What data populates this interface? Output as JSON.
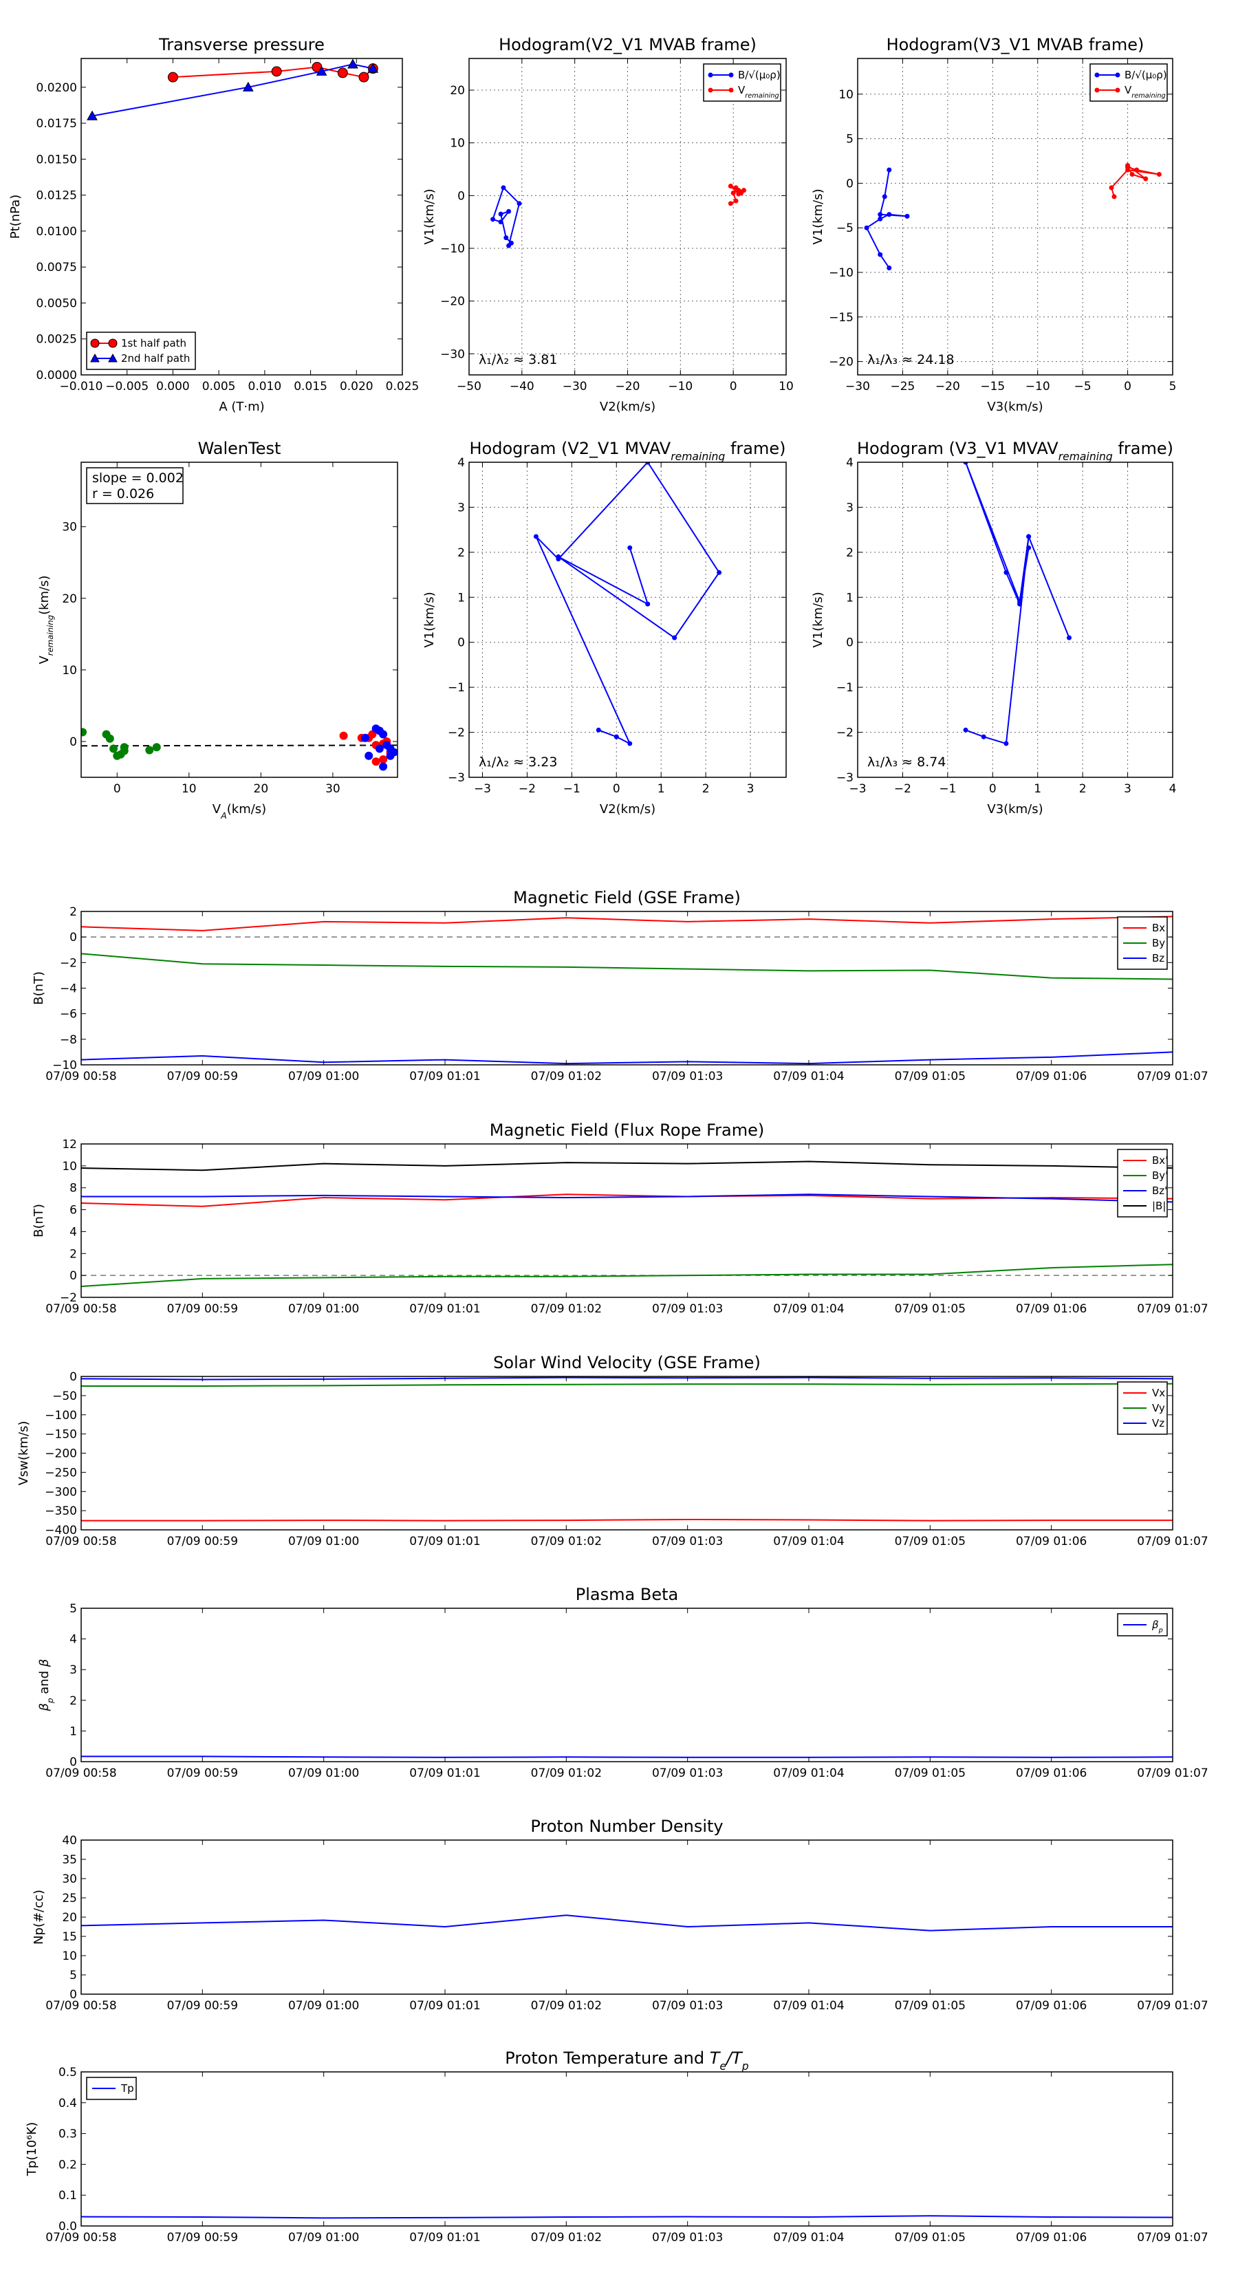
{
  "colors": {
    "red": "#ff0000",
    "green": "#008000",
    "blue": "#0000ff",
    "black": "#000000",
    "grid": "#666666",
    "dash": "#777777"
  },
  "time_ticks": [
    "07/09 00:58",
    "07/09 00:59",
    "07/09 01:00",
    "07/09 01:01",
    "07/09 01:02",
    "07/09 01:03",
    "07/09 01:04",
    "07/09 01:05",
    "07/09 01:06",
    "07/09 01:07"
  ],
  "chart_data": [
    {
      "id": "pt",
      "type": "scatter",
      "title": "Transverse pressure",
      "xlabel": "A (T·m)",
      "ylabel": "Pt(nPa)",
      "xlim": [
        -0.01,
        0.025
      ],
      "ylim": [
        0,
        0.022
      ],
      "xticks": [
        -0.01,
        -0.005,
        0,
        0.005,
        0.01,
        0.015,
        0.02,
        0.025
      ],
      "xtick_labels": [
        "−0.010",
        "−0.005",
        "0.000",
        "0.005",
        "0.010",
        "0.015",
        "0.020",
        "0.025"
      ],
      "yticks": [
        0,
        0.0025,
        0.005,
        0.0075,
        0.01,
        0.0125,
        0.015,
        0.0175,
        0.02
      ],
      "ytick_labels": [
        "0.0000",
        "0.0025",
        "0.0050",
        "0.0075",
        "0.0100",
        "0.0125",
        "0.0150",
        "0.0175",
        "0.0200"
      ],
      "legend_position": "lower-left",
      "series": [
        {
          "name": "1st half path",
          "color": "red",
          "marker": "circle",
          "x": [
            0.0,
            0.0113,
            0.0157,
            0.0185,
            0.0208,
            0.0218
          ],
          "y": [
            0.0207,
            0.0211,
            0.0214,
            0.021,
            0.0207,
            0.0213
          ]
        },
        {
          "name": "2nd half path",
          "color": "blue",
          "marker": "triangle",
          "x": [
            -0.0088,
            0.0082,
            0.0162,
            0.0196,
            0.0218
          ],
          "y": [
            0.018,
            0.02,
            0.0211,
            0.0216,
            0.0213
          ]
        }
      ]
    },
    {
      "id": "hb12",
      "type": "line",
      "title": "Hodogram(V2_V1 MVAB frame)",
      "xlabel": "V2(km/s)",
      "ylabel": "V1(km/s)",
      "xlim": [
        -50,
        10
      ],
      "ylim": [
        -34,
        26
      ],
      "xticks": [
        -50,
        -40,
        -30,
        -20,
        -10,
        0,
        10
      ],
      "xtick_labels": [
        "−50",
        "−40",
        "−30",
        "−20",
        "−10",
        "0",
        "10"
      ],
      "yticks": [
        -30,
        -20,
        -10,
        0,
        10,
        20
      ],
      "ytick_labels": [
        "−30",
        "−20",
        "−10",
        "0",
        "10",
        "20"
      ],
      "grid": true,
      "legend_position": "top-right",
      "annotation": "λ₁/λ₂ ≈ 3.81",
      "series": [
        {
          "name": "B/√(μ₀ρ)",
          "color": "blue",
          "x": [
            -42.5,
            -40.5,
            -43.5,
            -45.5,
            -44,
            -42.5,
            -44,
            -43,
            -42
          ],
          "y": [
            -9.5,
            -1.5,
            1.5,
            -4.5,
            -5,
            -3,
            -3.5,
            -8,
            -9
          ]
        },
        {
          "name": "V_remaining",
          "color": "red",
          "x": [
            -0.5,
            0.5,
            0,
            1,
            2,
            1.5,
            0.5,
            -0.5,
            1
          ],
          "y": [
            -1.5,
            -1,
            0.5,
            1,
            1,
            0.5,
            1.5,
            1.8,
            0.3
          ]
        }
      ]
    },
    {
      "id": "hb13",
      "type": "line",
      "title": "Hodogram(V3_V1 MVAB frame)",
      "xlabel": "V3(km/s)",
      "ylabel": "V1(km/s)",
      "xlim": [
        -30,
        5
      ],
      "ylim": [
        -21.5,
        14
      ],
      "xticks": [
        -30,
        -25,
        -20,
        -15,
        -10,
        -5,
        0,
        5
      ],
      "xtick_labels": [
        "−30",
        "−25",
        "−20",
        "−15",
        "−10",
        "−5",
        "0",
        "5"
      ],
      "yticks": [
        -20,
        -15,
        -10,
        -5,
        0,
        5,
        10
      ],
      "ytick_labels": [
        "−20",
        "−15",
        "−10",
        "−5",
        "0",
        "5",
        "10"
      ],
      "grid": true,
      "legend_position": "top-right",
      "annotation": "λ₁/λ₃ ≈ 24.18",
      "series": [
        {
          "name": "B/√(μ₀ρ)",
          "color": "blue",
          "x": [
            -26.5,
            -27.5,
            -29,
            -27.5,
            -26.5,
            -24.5,
            -27.5,
            -27,
            -26.5
          ],
          "y": [
            -9.5,
            -8,
            -5,
            -4,
            -3.5,
            -3.7,
            -3.5,
            -1.5,
            1.5
          ]
        },
        {
          "name": "V_remaining",
          "color": "red",
          "x": [
            -1.5,
            -1.8,
            0,
            3.5,
            1,
            0,
            0.5,
            2,
            0
          ],
          "y": [
            -1.5,
            -0.5,
            1.5,
            1,
            1.5,
            1.8,
            1,
            0.5,
            2
          ]
        }
      ]
    },
    {
      "id": "walen",
      "type": "scatter",
      "title": "WalenTest",
      "xlabel": "V_A(km/s)",
      "ylabel": "V_remaining(km/s)",
      "xlim": [
        -5,
        39
      ],
      "ylim": [
        -5,
        39
      ],
      "xticks": [
        0,
        10,
        20,
        30
      ],
      "xtick_labels": [
        "0",
        "10",
        "20",
        "30"
      ],
      "yticks": [
        0,
        10,
        20,
        30
      ],
      "ytick_labels": [
        "0",
        "10",
        "20",
        "30"
      ],
      "annotation_lines": [
        "slope = 0.002",
        "r = 0.026"
      ],
      "fit_line": {
        "slope": 0.002,
        "intercept": -0.6
      },
      "series": [
        {
          "name": "green",
          "color": "green",
          "x": [
            -4.8,
            -1.5,
            -1,
            -0.5,
            0,
            0.5,
            1,
            1,
            4.5,
            5.5
          ],
          "y": [
            1.3,
            1,
            0.4,
            -1,
            -2,
            -1.8,
            -1.3,
            -0.8,
            -1.2,
            -0.8
          ]
        },
        {
          "name": "red",
          "color": "red",
          "x": [
            31.5,
            34,
            35,
            35.5,
            36,
            36.5,
            37,
            37.5,
            37,
            36,
            38
          ],
          "y": [
            0.8,
            0.5,
            0.5,
            1,
            -0.5,
            -0.7,
            -0.3,
            0,
            -2.5,
            -2.8,
            -1.5
          ]
        },
        {
          "name": "blue",
          "color": "blue",
          "x": [
            34.5,
            35,
            36,
            36.5,
            37,
            37.5,
            38,
            38.5,
            38,
            37,
            36.5
          ],
          "y": [
            0.5,
            -2,
            1.8,
            1.5,
            1,
            -0.5,
            -1,
            -1.5,
            -2,
            -3.5,
            -1
          ]
        }
      ]
    },
    {
      "id": "hv12",
      "type": "line",
      "title": "Hodogram (V2_V1 MVAV_remaining frame)",
      "xlabel": "V2(km/s)",
      "ylabel": "V1(km/s)",
      "xlim": [
        -3.3,
        3.8
      ],
      "ylim": [
        -3,
        4
      ],
      "xticks": [
        -3,
        -2,
        -1,
        0,
        1,
        2,
        3
      ],
      "xtick_labels": [
        "−3",
        "−2",
        "−1",
        "0",
        "1",
        "2",
        "3"
      ],
      "yticks": [
        -3,
        -2,
        -1,
        0,
        1,
        2,
        3,
        4
      ],
      "ytick_labels": [
        "−3",
        "−2",
        "−1",
        "0",
        "1",
        "2",
        "3",
        "4"
      ],
      "grid": true,
      "annotation": "λ₁/λ₂ ≈ 3.23",
      "series": [
        {
          "name": "trace",
          "color": "blue",
          "x": [
            -0.4,
            0,
            0.3,
            -1.8,
            -1.3,
            0.7,
            2.3,
            1.3,
            -1.3,
            0.7,
            0.3
          ],
          "y": [
            -1.95,
            -2.1,
            -2.25,
            2.35,
            1.85,
            4,
            1.55,
            0.1,
            1.9,
            0.85,
            2.1
          ]
        }
      ]
    },
    {
      "id": "hv13",
      "type": "line",
      "title": "Hodogram (V3_V1 MVAV_remaining frame)",
      "xlabel": "V3(km/s)",
      "ylabel": "V1(km/s)",
      "xlim": [
        -3,
        4
      ],
      "ylim": [
        -3,
        4
      ],
      "xticks": [
        -3,
        -2,
        -1,
        0,
        1,
        2,
        3,
        4
      ],
      "xtick_labels": [
        "−3",
        "−2",
        "−1",
        "0",
        "1",
        "2",
        "3",
        "4"
      ],
      "yticks": [
        -3,
        -2,
        -1,
        0,
        1,
        2,
        3,
        4
      ],
      "ytick_labels": [
        "−3",
        "−2",
        "−1",
        "0",
        "1",
        "2",
        "3",
        "4"
      ],
      "grid": true,
      "annotation": "λ₁/λ₃ ≈ 8.74",
      "series": [
        {
          "name": "trace",
          "color": "blue",
          "x": [
            -0.6,
            -0.2,
            0.3,
            0.8,
            1.7,
            0.8,
            0.6,
            -0.6,
            0.3,
            0.6,
            0.8
          ],
          "y": [
            -1.95,
            -2.1,
            -2.25,
            2.35,
            0.1,
            2.35,
            0.9,
            4,
            1.55,
            0.85,
            2.1
          ]
        }
      ]
    },
    {
      "id": "bgse",
      "type": "line",
      "title": "Magnetic Field (GSE Frame)",
      "ylabel": "B(nT)",
      "xlim": [
        0,
        9
      ],
      "ylim": [
        -10,
        2
      ],
      "yticks": [
        -10,
        -8,
        -6,
        -4,
        -2,
        0,
        2
      ],
      "ytick_labels": [
        "−10",
        "−8",
        "−6",
        "−4",
        "−2",
        "0",
        "2"
      ],
      "hline": 0,
      "legend_position": "top-right",
      "series": [
        {
          "name": "Bx",
          "color": "red",
          "x": [
            0,
            1,
            2,
            3,
            4,
            5,
            6,
            7,
            8,
            9
          ],
          "y": [
            0.8,
            0.5,
            1.2,
            1.1,
            1.5,
            1.2,
            1.4,
            1.1,
            1.4,
            1.6
          ]
        },
        {
          "name": "By",
          "color": "green",
          "x": [
            0,
            1,
            2,
            3,
            4,
            5,
            6,
            7,
            8,
            9
          ],
          "y": [
            -1.3,
            -2.1,
            -2.2,
            -2.3,
            -2.35,
            -2.5,
            -2.65,
            -2.6,
            -3.2,
            -3.3
          ]
        },
        {
          "name": "Bz",
          "color": "blue",
          "x": [
            0,
            1,
            2,
            3,
            4,
            5,
            6,
            7,
            8,
            9
          ],
          "y": [
            -9.6,
            -9.3,
            -9.8,
            -9.6,
            -9.9,
            -9.75,
            -9.9,
            -9.6,
            -9.4,
            -9.0
          ]
        }
      ]
    },
    {
      "id": "bfr",
      "type": "line",
      "title": "Magnetic Field (Flux Rope Frame)",
      "ylabel": "B(nT)",
      "xlim": [
        0,
        9
      ],
      "ylim": [
        -2,
        12
      ],
      "yticks": [
        -2,
        0,
        2,
        4,
        6,
        8,
        10,
        12
      ],
      "ytick_labels": [
        "−2",
        "0",
        "2",
        "4",
        "6",
        "8",
        "10",
        "12"
      ],
      "hline": 0,
      "legend_position": "top-right",
      "series": [
        {
          "name": "Bx'",
          "color": "red",
          "x": [
            0,
            1,
            2,
            3,
            4,
            5,
            6,
            7,
            8,
            9
          ],
          "y": [
            6.6,
            6.3,
            7.1,
            6.9,
            7.4,
            7.2,
            7.3,
            7.0,
            7.1,
            7.0
          ]
        },
        {
          "name": "By'",
          "color": "green",
          "x": [
            0,
            1,
            2,
            3,
            4,
            5,
            6,
            7,
            8,
            9
          ],
          "y": [
            -1.0,
            -0.3,
            -0.2,
            -0.1,
            -0.1,
            0.0,
            0.1,
            0.1,
            0.7,
            1.0
          ]
        },
        {
          "name": "Bz'",
          "color": "blue",
          "x": [
            0,
            1,
            2,
            3,
            4,
            5,
            6,
            7,
            8,
            9
          ],
          "y": [
            7.2,
            7.2,
            7.3,
            7.2,
            7.1,
            7.2,
            7.4,
            7.2,
            7.0,
            6.7
          ]
        },
        {
          "name": "|B|",
          "color": "black",
          "x": [
            0,
            1,
            2,
            3,
            4,
            5,
            6,
            7,
            8,
            9
          ],
          "y": [
            9.8,
            9.6,
            10.2,
            10.0,
            10.3,
            10.2,
            10.4,
            10.1,
            10.0,
            9.8
          ]
        }
      ]
    },
    {
      "id": "vsw",
      "type": "line",
      "title": "Solar Wind Velocity (GSE Frame)",
      "ylabel": "Vsw(km/s)",
      "xlim": [
        0,
        9
      ],
      "ylim": [
        -400,
        0
      ],
      "yticks": [
        -400,
        -350,
        -300,
        -250,
        -200,
        -150,
        -100,
        -50,
        0
      ],
      "ytick_labels": [
        "−400",
        "−350",
        "−300",
        "−250",
        "−200",
        "−150",
        "−100",
        "−50",
        "0"
      ],
      "legend_position": "top-right",
      "series": [
        {
          "name": "Vx",
          "color": "red",
          "x": [
            0,
            1,
            2,
            3,
            4,
            5,
            6,
            7,
            8,
            9
          ],
          "y": [
            -376,
            -376,
            -375,
            -376,
            -375,
            -373,
            -374,
            -376,
            -375,
            -375
          ]
        },
        {
          "name": "Vy",
          "color": "green",
          "x": [
            0,
            1,
            2,
            3,
            4,
            5,
            6,
            7,
            8,
            9
          ],
          "y": [
            -25,
            -25,
            -24,
            -22,
            -21,
            -20,
            -20,
            -21,
            -20,
            -19
          ]
        },
        {
          "name": "Vz",
          "color": "blue",
          "x": [
            0,
            1,
            2,
            3,
            4,
            5,
            6,
            7,
            8,
            9
          ],
          "y": [
            -6,
            -8,
            -7,
            -5,
            -3,
            -4,
            -3,
            -5,
            -4,
            -6
          ]
        }
      ]
    },
    {
      "id": "beta",
      "type": "line",
      "title": "Plasma Beta",
      "ylabel": "βp and β",
      "xlim": [
        0,
        9
      ],
      "ylim": [
        0,
        5
      ],
      "yticks": [
        0,
        1,
        2,
        3,
        4,
        5
      ],
      "ytick_labels": [
        "0",
        "1",
        "2",
        "3",
        "4",
        "5"
      ],
      "legend_position": "top-right",
      "series": [
        {
          "name": "βp",
          "color": "blue",
          "x": [
            0,
            1,
            2,
            3,
            4,
            5,
            6,
            7,
            8,
            9
          ],
          "y": [
            0.17,
            0.17,
            0.15,
            0.14,
            0.15,
            0.14,
            0.14,
            0.15,
            0.14,
            0.15
          ]
        }
      ]
    },
    {
      "id": "np",
      "type": "line",
      "title": "Proton Number Density",
      "ylabel": "Np(#/cc)",
      "xlim": [
        0,
        9
      ],
      "ylim": [
        0,
        40
      ],
      "yticks": [
        0,
        5,
        10,
        15,
        20,
        25,
        30,
        35,
        40
      ],
      "ytick_labels": [
        "0",
        "5",
        "10",
        "15",
        "20",
        "25",
        "30",
        "35",
        "40"
      ],
      "series": [
        {
          "name": "Np",
          "color": "blue",
          "x": [
            0,
            1,
            2,
            3,
            4,
            5,
            6,
            7,
            8,
            9
          ],
          "y": [
            17.8,
            18.5,
            19.2,
            17.5,
            20.5,
            17.5,
            18.5,
            16.5,
            17.5,
            17.5
          ]
        }
      ]
    },
    {
      "id": "tp",
      "type": "line",
      "title": "Proton Temperature and Te/Tp",
      "ylabel": "Tp(10⁶K)",
      "xlim": [
        0,
        9
      ],
      "ylim": [
        0,
        0.5
      ],
      "yticks": [
        0,
        0.1,
        0.2,
        0.3,
        0.4,
        0.5
      ],
      "ytick_labels": [
        "0.0",
        "0.1",
        "0.2",
        "0.3",
        "0.4",
        "0.5"
      ],
      "legend_position": "top-left",
      "series": [
        {
          "name": "Tp",
          "color": "blue",
          "x": [
            0,
            1,
            2,
            3,
            4,
            5,
            6,
            7,
            8,
            9
          ],
          "y": [
            0.03,
            0.029,
            0.026,
            0.027,
            0.029,
            0.03,
            0.029,
            0.033,
            0.029,
            0.028
          ]
        }
      ]
    }
  ]
}
